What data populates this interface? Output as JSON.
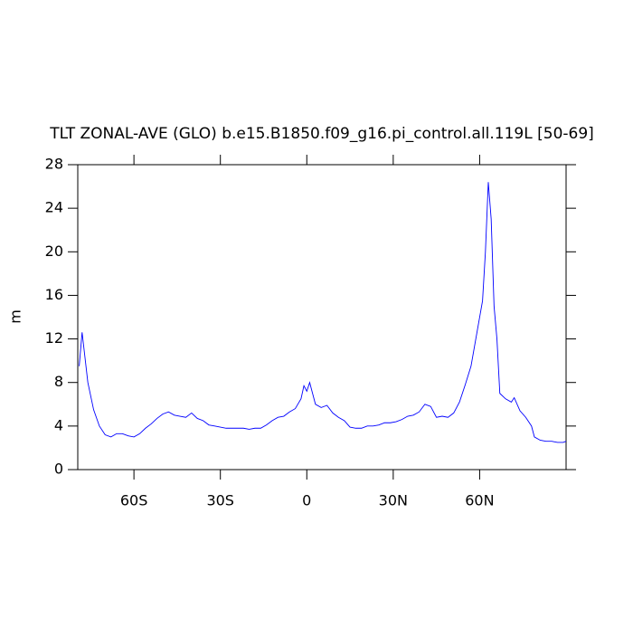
{
  "chart_data": {
    "type": "line",
    "title": "TLT ZONAL-AVE (GLO) b.e15.B1850.f09_g16.pi_control.all.119L [50-69]",
    "y_label": "m",
    "xlim": [
      -79.5,
      90
    ],
    "ylim": [
      0,
      28
    ],
    "xticks": [
      {
        "value": -60,
        "label": "60S"
      },
      {
        "value": -30,
        "label": "30S"
      },
      0,
      {
        "value": 30,
        "label": "30N"
      },
      {
        "value": 60,
        "label": "60N"
      }
    ],
    "yticks": [
      0,
      4,
      8,
      12,
      16,
      20,
      24,
      28
    ],
    "grid": false,
    "series": [
      {
        "color": "#0000ff",
        "x": [
          -79,
          -78,
          -76,
          -74,
          -72,
          -70,
          -68,
          -66,
          -64,
          -62,
          -60,
          -58,
          -56,
          -54,
          -52,
          -50,
          -48,
          -46,
          -44,
          -42,
          -40,
          -38,
          -36,
          -34,
          -32,
          -30,
          -28,
          -26,
          -24,
          -22,
          -20,
          -18,
          -16,
          -14,
          -12,
          -10,
          -8,
          -6,
          -4,
          -2,
          -1,
          0,
          1,
          2,
          3,
          5,
          7,
          9,
          11,
          13,
          15,
          17,
          19,
          21,
          23,
          25,
          27,
          29,
          31,
          33,
          35,
          37,
          39,
          41,
          43,
          45,
          47,
          49,
          51,
          53,
          55,
          57,
          59,
          61,
          62,
          63,
          64,
          65,
          66,
          67,
          69,
          71,
          72,
          74,
          76,
          78,
          79,
          81,
          83,
          85,
          87,
          89,
          90
        ],
        "values": [
          9.5,
          12.6,
          8,
          5.5,
          4,
          3.2,
          3,
          3.3,
          3.3,
          3.1,
          3,
          3.3,
          3.8,
          4.2,
          4.7,
          5.1,
          5.3,
          5,
          4.9,
          4.8,
          5.2,
          4.7,
          4.5,
          4.1,
          4,
          3.9,
          3.8,
          3.8,
          3.8,
          3.8,
          3.7,
          3.8,
          3.8,
          4.1,
          4.5,
          4.8,
          4.9,
          5.3,
          5.6,
          6.5,
          7.7,
          7.2,
          8,
          7,
          6,
          5.7,
          5.9,
          5.2,
          4.8,
          4.5,
          3.9,
          3.8,
          3.8,
          4,
          4,
          4.1,
          4.3,
          4.3,
          4.4,
          4.6,
          4.9,
          5,
          5.3,
          6,
          5.8,
          4.8,
          4.9,
          4.8,
          5.2,
          6.2,
          7.8,
          9.5,
          12.5,
          15.5,
          20,
          26.4,
          23,
          15,
          12,
          7,
          6.5,
          6.2,
          6.6,
          5.4,
          4.8,
          4,
          3,
          2.7,
          2.6,
          2.6,
          2.5,
          2.5,
          2.6
        ]
      }
    ]
  }
}
